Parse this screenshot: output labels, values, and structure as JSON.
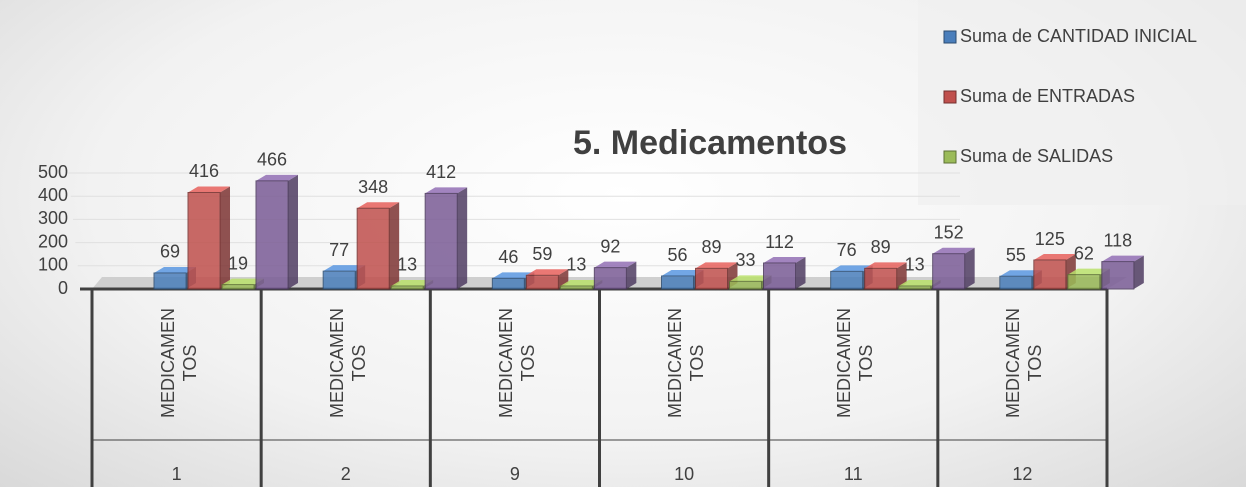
{
  "chart_data": {
    "type": "bar3d",
    "title": "5. Medicamentos",
    "categories": [
      "MEDICAMENTOS",
      "MEDICAMENTOS",
      "MEDICAMENTOS",
      "MEDICAMENTOS",
      "MEDICAMENTOS",
      "MEDICAMENTOS"
    ],
    "outer_categories": [
      "1",
      "2",
      "9",
      "10",
      "11",
      "12"
    ],
    "series": [
      {
        "name": "Suma de CANTIDAD INICIAL",
        "color": "#4a7ebb",
        "values": [
          69,
          77,
          46,
          56,
          76,
          55
        ]
      },
      {
        "name": "Suma de ENTRADAS",
        "color": "#c0504d",
        "values": [
          416,
          348,
          59,
          89,
          89,
          125
        ]
      },
      {
        "name": "Suma de SALIDAS",
        "color": "#9bbb59",
        "values": [
          19,
          13,
          13,
          33,
          13,
          62
        ]
      },
      {
        "color": "#7a5c96",
        "values": [
          466,
          412,
          92,
          112,
          152,
          118
        ]
      }
    ],
    "ylim": [
      0,
      500
    ],
    "yticks": [
      0,
      100,
      200,
      300,
      400,
      500
    ],
    "grid": true,
    "legend": "top-right"
  }
}
